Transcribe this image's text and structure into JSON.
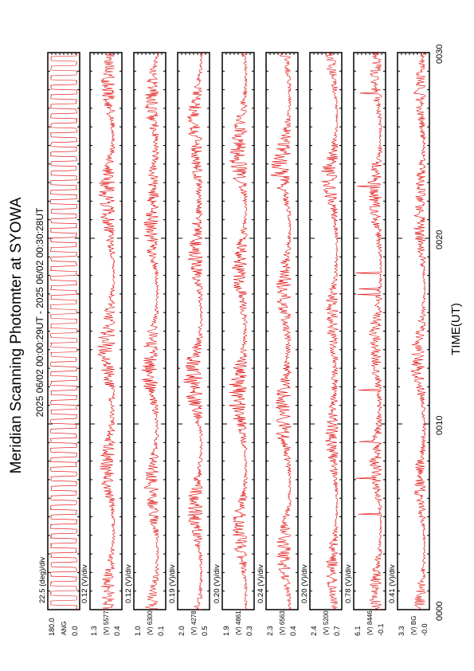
{
  "page": {
    "title": "Meridian Scanning Photomter at SYOWA",
    "time_range": "2025 06/02 00:00:29UT - 2025 06/02 00:30:28UT",
    "xlabel": "TIME(UT)"
  },
  "chart_data": {
    "type": "line",
    "orientation": "rotated-90",
    "line_color": "#e00000",
    "x_unit": "UT",
    "xlim": [
      0,
      30
    ],
    "x_ticks": [
      "0000",
      "0010",
      "0020",
      "0030"
    ],
    "panels": [
      {
        "scale_label": "22.5 (deg)/div",
        "channel_label": "ANG",
        "y_top": "180.0",
        "y_bottom": "0.0"
      },
      {
        "scale_label": "0.12 (V)/div",
        "channel_label": "(V) 5577",
        "y_top": "1.3",
        "y_bottom": "0.4"
      },
      {
        "scale_label": "0.12 (V)/div",
        "channel_label": "(V) 6300",
        "y_top": "1.0",
        "y_bottom": "0.1"
      },
      {
        "scale_label": "0.19 (V)/div",
        "channel_label": "(V) 4278",
        "y_top": "2.0",
        "y_bottom": "0.5"
      },
      {
        "scale_label": "0.20 (V)/div",
        "channel_label": "(V) 4861",
        "y_top": "1.9",
        "y_bottom": "0.3"
      },
      {
        "scale_label": "0.24 (V)/div",
        "channel_label": "(V) 6563",
        "y_top": "2.3",
        "y_bottom": "0.4"
      },
      {
        "scale_label": "0.20 (V)/div",
        "channel_label": "(V) 5200",
        "y_top": "2.4",
        "y_bottom": "0.7"
      },
      {
        "scale_label": "0.78 (V)/div",
        "channel_label": "(V) 8446",
        "y_top": "6.1",
        "y_bottom": "-0.1"
      },
      {
        "scale_label": "0.41 (V)/div",
        "channel_label": "(V) BG",
        "y_top": "3.3",
        "y_bottom": "-0.0"
      }
    ]
  }
}
